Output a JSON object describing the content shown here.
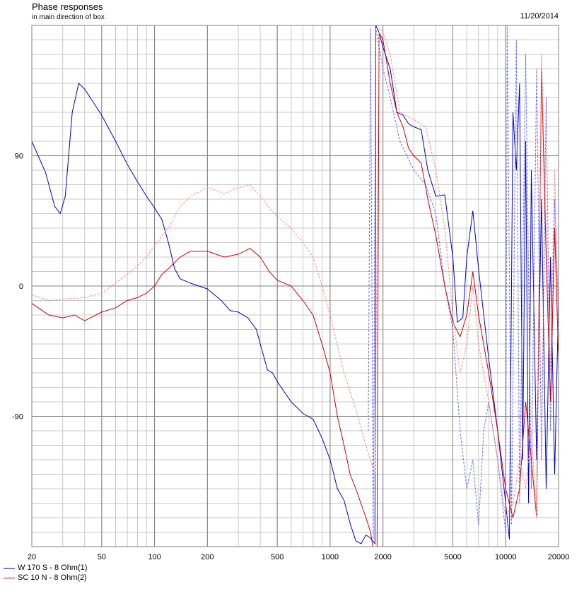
{
  "chart_data": {
    "type": "line",
    "title": "Phase responses",
    "subtitle": "in main direction of box",
    "date": "11/20/2014",
    "xscale": "log",
    "xlim": [
      20,
      20000
    ],
    "ylim": [
      -180,
      180
    ],
    "x_tick_values": [
      20,
      50,
      100,
      200,
      500,
      1000,
      2000,
      5000,
      10000,
      20000
    ],
    "x_tick_labels": [
      "20",
      "50",
      "100",
      "200",
      "500",
      "1000",
      "2000",
      "5000",
      "10000",
      "20000"
    ],
    "y_tick_values": [
      90,
      0,
      -90
    ],
    "y_tick_labels": [
      "90",
      "0",
      "-90"
    ],
    "grid": true,
    "legend_position": "bottom-left",
    "legend": [
      {
        "label": "W 170 S - 8 Ohm(1)",
        "color": "#0000cc"
      },
      {
        "label": "SC 10 N - 8 Ohm(2)",
        "color": "#cc0000"
      }
    ],
    "series": [
      {
        "name": "W 170 S - 8 Ohm(1)",
        "color": "#0000cc",
        "dashed": false,
        "points": [
          [
            20,
            100
          ],
          [
            24,
            78
          ],
          [
            27,
            55
          ],
          [
            29,
            50
          ],
          [
            31,
            62
          ],
          [
            34,
            120
          ],
          [
            37,
            140
          ],
          [
            40,
            136
          ],
          [
            50,
            118
          ],
          [
            60,
            100
          ],
          [
            70,
            84
          ],
          [
            80,
            72
          ],
          [
            90,
            62
          ],
          [
            100,
            54
          ],
          [
            110,
            46
          ],
          [
            120,
            30
          ],
          [
            130,
            12
          ],
          [
            140,
            5
          ],
          [
            160,
            2
          ],
          [
            200,
            -2
          ],
          [
            240,
            -10
          ],
          [
            270,
            -17
          ],
          [
            300,
            -18
          ],
          [
            340,
            -22
          ],
          [
            380,
            -30
          ],
          [
            400,
            -40
          ],
          [
            440,
            -58
          ],
          [
            470,
            -60
          ],
          [
            500,
            -66
          ],
          [
            600,
            -80
          ],
          [
            700,
            -88
          ],
          [
            800,
            -92
          ],
          [
            900,
            -105
          ],
          [
            1000,
            -120
          ],
          [
            1100,
            -140
          ],
          [
            1200,
            -148
          ],
          [
            1300,
            -164
          ],
          [
            1400,
            -176
          ],
          [
            1500,
            -178
          ],
          [
            1600,
            -172
          ],
          [
            1700,
            -174
          ],
          [
            1800,
            -178
          ],
          [
            1820,
            180
          ],
          [
            1900,
            175
          ],
          [
            2000,
            165
          ],
          [
            2200,
            150
          ],
          [
            2400,
            120
          ],
          [
            2600,
            118
          ],
          [
            2800,
            112
          ],
          [
            3000,
            110
          ],
          [
            3300,
            108
          ],
          [
            3600,
            80
          ],
          [
            4000,
            62
          ],
          [
            4500,
            63
          ],
          [
            5000,
            20
          ],
          [
            5300,
            -25
          ],
          [
            5700,
            -22
          ],
          [
            6000,
            20
          ],
          [
            6500,
            52
          ],
          [
            7000,
            12
          ],
          [
            7500,
            -20
          ],
          [
            8000,
            -50
          ],
          [
            9000,
            -100
          ],
          [
            10000,
            -150
          ],
          [
            10500,
            -175
          ],
          [
            11000,
            120
          ],
          [
            11500,
            80
          ],
          [
            12000,
            140
          ],
          [
            12500,
            -120
          ],
          [
            13000,
            100
          ],
          [
            13500,
            -150
          ],
          [
            14000,
            80
          ],
          [
            15000,
            -120
          ],
          [
            16000,
            60
          ],
          [
            17000,
            -140
          ],
          [
            18000,
            20
          ],
          [
            19000,
            -130
          ],
          [
            20000,
            -10
          ]
        ]
      },
      {
        "name": "W 170 S - 8 Ohm(1)",
        "color": "#6666ff",
        "dashed": true,
        "points": [
          [
            1650,
            -100
          ],
          [
            1700,
            178
          ],
          [
            1760,
            -175
          ],
          [
            1820,
            178
          ],
          [
            1900,
            165
          ],
          [
            2000,
            150
          ],
          [
            2200,
            130
          ],
          [
            2500,
            100
          ],
          [
            3000,
            80
          ],
          [
            3500,
            70
          ],
          [
            4000,
            50
          ],
          [
            4500,
            0
          ],
          [
            5000,
            -30
          ],
          [
            5500,
            -100
          ],
          [
            6000,
            -140
          ],
          [
            6500,
            -120
          ],
          [
            7000,
            -165
          ],
          [
            7500,
            -100
          ],
          [
            8000,
            -80
          ],
          [
            9000,
            -120
          ],
          [
            10000,
            -170
          ],
          [
            10200,
            180
          ],
          [
            10800,
            -165
          ],
          [
            11500,
            170
          ],
          [
            12000,
            -150
          ],
          [
            13000,
            160
          ],
          [
            14000,
            -140
          ],
          [
            15000,
            150
          ],
          [
            16000,
            -120
          ],
          [
            17000,
            130
          ],
          [
            18000,
            -100
          ],
          [
            19000,
            60
          ],
          [
            20000,
            -20
          ]
        ]
      },
      {
        "name": "SC 10 N - 8 Ohm(2)",
        "color": "#cc0000",
        "dashed": false,
        "points": [
          [
            20,
            -12
          ],
          [
            25,
            -20
          ],
          [
            30,
            -22
          ],
          [
            35,
            -20
          ],
          [
            40,
            -24
          ],
          [
            50,
            -18
          ],
          [
            60,
            -15
          ],
          [
            70,
            -10
          ],
          [
            80,
            -8
          ],
          [
            90,
            -5
          ],
          [
            100,
            0
          ],
          [
            110,
            8
          ],
          [
            120,
            12
          ],
          [
            140,
            20
          ],
          [
            160,
            24
          ],
          [
            200,
            24
          ],
          [
            250,
            20
          ],
          [
            300,
            22
          ],
          [
            350,
            26
          ],
          [
            400,
            20
          ],
          [
            450,
            10
          ],
          [
            500,
            4
          ],
          [
            600,
            0
          ],
          [
            700,
            -10
          ],
          [
            800,
            -20
          ],
          [
            900,
            -40
          ],
          [
            1000,
            -60
          ],
          [
            1100,
            -90
          ],
          [
            1200,
            -110
          ],
          [
            1300,
            -130
          ],
          [
            1400,
            -140
          ],
          [
            1600,
            -160
          ],
          [
            1700,
            -170
          ],
          [
            1750,
            -180
          ],
          [
            1850,
            -180
          ],
          [
            1900,
            175
          ],
          [
            2000,
            170
          ],
          [
            2200,
            140
          ],
          [
            2400,
            120
          ],
          [
            2600,
            110
          ],
          [
            2800,
            95
          ],
          [
            3000,
            90
          ],
          [
            3300,
            85
          ],
          [
            3600,
            60
          ],
          [
            4000,
            35
          ],
          [
            4500,
            0
          ],
          [
            5000,
            -25
          ],
          [
            5500,
            -35
          ],
          [
            6000,
            -20
          ],
          [
            6500,
            10
          ],
          [
            7000,
            -20
          ],
          [
            8000,
            -60
          ],
          [
            9000,
            -100
          ],
          [
            10000,
            -140
          ],
          [
            11000,
            -160
          ],
          [
            12000,
            -140
          ],
          [
            13000,
            -80
          ],
          [
            14000,
            -120
          ],
          [
            15000,
            -160
          ],
          [
            16000,
            150
          ],
          [
            17000,
            20
          ],
          [
            18000,
            -80
          ],
          [
            19000,
            40
          ],
          [
            20000,
            -50
          ]
        ]
      },
      {
        "name": "SC 10 N - 8 Ohm(2)",
        "color": "#ff8888",
        "dashed": true,
        "points": [
          [
            20,
            -6
          ],
          [
            25,
            -10
          ],
          [
            30,
            -9
          ],
          [
            40,
            -8
          ],
          [
            50,
            -5
          ],
          [
            60,
            2
          ],
          [
            70,
            8
          ],
          [
            80,
            14
          ],
          [
            90,
            20
          ],
          [
            100,
            28
          ],
          [
            120,
            40
          ],
          [
            140,
            55
          ],
          [
            160,
            62
          ],
          [
            200,
            68
          ],
          [
            250,
            64
          ],
          [
            300,
            68
          ],
          [
            350,
            70
          ],
          [
            400,
            62
          ],
          [
            450,
            54
          ],
          [
            500,
            48
          ],
          [
            600,
            40
          ],
          [
            700,
            30
          ],
          [
            800,
            20
          ],
          [
            900,
            0
          ],
          [
            1000,
            -20
          ],
          [
            1200,
            -60
          ],
          [
            1400,
            -85
          ],
          [
            1600,
            -110
          ],
          [
            1800,
            -130
          ],
          [
            1900,
            178
          ],
          [
            2000,
            175
          ],
          [
            2200,
            160
          ],
          [
            2500,
            120
          ],
          [
            3000,
            115
          ],
          [
            3500,
            110
          ],
          [
            4000,
            80
          ],
          [
            4500,
            40
          ],
          [
            5000,
            -20
          ],
          [
            5500,
            -60
          ],
          [
            6000,
            -40
          ],
          [
            6500,
            0
          ],
          [
            7000,
            -40
          ],
          [
            8000,
            -80
          ],
          [
            9000,
            -120
          ],
          [
            10000,
            -160
          ],
          [
            11000,
            -150
          ],
          [
            12000,
            -120
          ],
          [
            13000,
            -140
          ],
          [
            14000,
            -100
          ],
          [
            15000,
            -160
          ],
          [
            16000,
            160
          ],
          [
            17000,
            40
          ],
          [
            18000,
            -60
          ],
          [
            19000,
            80
          ],
          [
            20000,
            -40
          ]
        ]
      }
    ]
  }
}
